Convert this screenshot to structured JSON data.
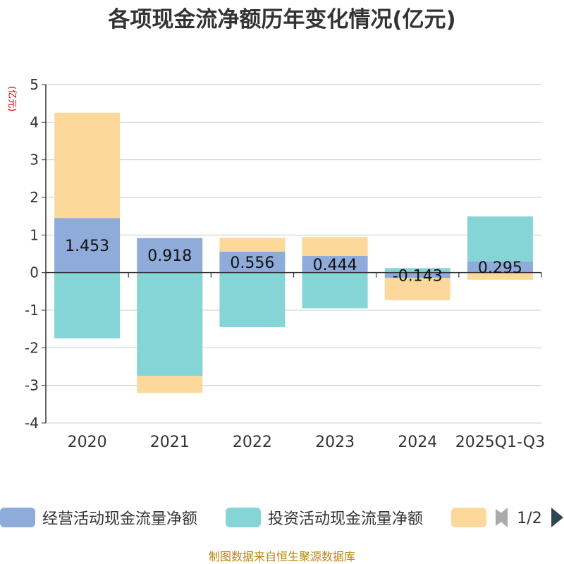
{
  "chart_data": {
    "type": "bar",
    "stacked": true,
    "title": "各项现金流净额历年变化情况(亿元)",
    "unit_label": "(亿元)",
    "categories": [
      "2020",
      "2021",
      "2022",
      "2023",
      "2024",
      "2025Q1-Q3"
    ],
    "ylim": [
      -4,
      5
    ],
    "yticks": [
      "5",
      "4",
      "3",
      "2",
      "1",
      "0",
      "-1",
      "-2",
      "-3",
      "-4"
    ],
    "grid": true,
    "series": [
      {
        "name": "经营活动现金流量净额",
        "color": "#8eabd9",
        "values": [
          1.453,
          0.918,
          0.556,
          0.444,
          -0.143,
          0.295
        ]
      },
      {
        "name": "投资活动现金流量净额",
        "color": "#85d5d7",
        "values": [
          -1.75,
          -2.75,
          -1.45,
          -0.95,
          0.12,
          1.2
        ]
      },
      {
        "name": "",
        "color": "#fcd89a",
        "values": [
          2.8,
          -0.45,
          0.37,
          0.5,
          -0.59,
          -0.19
        ]
      }
    ],
    "data_labels": [
      "1.453",
      "0.918",
      "0.556",
      "0.444",
      "-0.143",
      "0.295"
    ],
    "legend": {
      "placement": "bottom",
      "page": "1/2"
    }
  },
  "footer": {
    "source": "制图数据来自恒生聚源数据库"
  }
}
